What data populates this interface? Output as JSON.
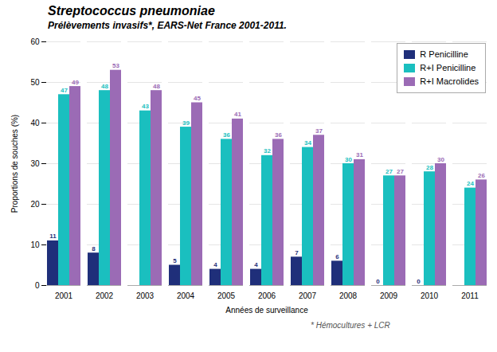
{
  "chart_data": {
    "type": "bar",
    "title": "Streptococcus pneumoniae",
    "subtitle": "Prélèvements invasifs*, EARS-Net France 2001-2011.",
    "caption": "* Hémocultures + LCR",
    "xlabel": "Années de surveillance",
    "ylabel": "Proportions de souches (%)",
    "categories": [
      "2001",
      "2002",
      "2003",
      "2004",
      "2005",
      "2006",
      "2007",
      "2008",
      "2009",
      "2010",
      "2011"
    ],
    "series": [
      {
        "name": "R Penicilline",
        "color": "#1f2f7a",
        "values": [
          11,
          8,
          0,
          5,
          4,
          4,
          7,
          6,
          0,
          0,
          0
        ],
        "value_labels": [
          "11",
          "8",
          null,
          "5",
          "4",
          "4",
          "7",
          "6",
          "0",
          "0",
          null
        ]
      },
      {
        "name": "R+I Penicilline",
        "color": "#1abfbf",
        "values": [
          47,
          48,
          43,
          39,
          36,
          32,
          34,
          30,
          27,
          28,
          24
        ]
      },
      {
        "name": "R+I Macrolides",
        "color": "#9b6bb5",
        "values": [
          49,
          53,
          48,
          45,
          41,
          36,
          37,
          31,
          27,
          30,
          26
        ]
      }
    ],
    "ylim": [
      0,
      60
    ],
    "yticks": [
      0,
      10,
      20,
      30,
      40,
      50,
      60
    ],
    "grid": true,
    "legend": "upper right",
    "data_labels": true
  }
}
